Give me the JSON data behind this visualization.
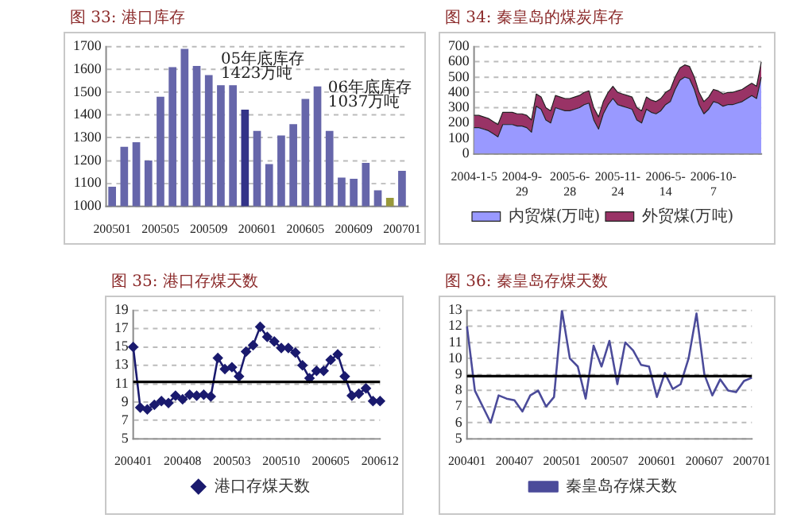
{
  "chart_data": [
    {
      "type": "bar",
      "title": "图 33: 港口库存",
      "categories": [
        "200501",
        null,
        null,
        null,
        "200505",
        null,
        null,
        null,
        "200509",
        null,
        null,
        null,
        "200601",
        null,
        null,
        null,
        "200605",
        null,
        null,
        null,
        "200609",
        null,
        null,
        null,
        "200701"
      ],
      "values": [
        1085,
        1260,
        1280,
        1200,
        1480,
        1610,
        1690,
        1615,
        1575,
        1530,
        1530,
        1423,
        1330,
        1185,
        1310,
        1360,
        1470,
        1525,
        1330,
        1125,
        1120,
        1190,
        1070,
        1037,
        1155
      ],
      "colors": [
        "#6666aa",
        "#6666aa",
        "#6666aa",
        "#6666aa",
        "#6666aa",
        "#6666aa",
        "#6666aa",
        "#6666aa",
        "#6666aa",
        "#6666aa",
        "#6666aa",
        "#333388",
        "#6666aa",
        "#6666aa",
        "#6666aa",
        "#6666aa",
        "#6666aa",
        "#6666aa",
        "#6666aa",
        "#6666aa",
        "#6666aa",
        "#6666aa",
        "#6666aa",
        "#99993a",
        "#6666aa"
      ],
      "ylim": [
        1000,
        1700
      ],
      "yticks": [
        1000,
        1100,
        1200,
        1300,
        1400,
        1500,
        1600,
        1700
      ],
      "grid": "y",
      "annotations": [
        "05年底库存",
        "1423万吨",
        "06年底库存",
        "1037万吨"
      ]
    },
    {
      "type": "area",
      "title": "图 34: 秦皇岛的煤炭库存",
      "stacked": true,
      "categories": [
        "2004-1-5",
        null,
        null,
        null,
        null,
        null,
        null,
        null,
        null,
        null,
        "2004-9-29",
        null,
        null,
        null,
        null,
        null,
        null,
        null,
        null,
        null,
        "2005-6-28",
        null,
        null,
        null,
        null,
        null,
        null,
        null,
        null,
        null,
        "2005-11-24",
        null,
        null,
        null,
        null,
        null,
        null,
        null,
        null,
        null,
        "2006-5-14",
        null,
        null,
        null,
        null,
        null,
        null,
        null,
        null,
        null,
        "2006-10-7",
        null,
        null,
        null,
        null,
        null,
        null,
        null,
        null,
        null,
        null
      ],
      "series": [
        {
          "name": "内贸煤(万吨)",
          "color": "#9999ff",
          "values": [
            170,
            170,
            160,
            150,
            130,
            110,
            190,
            190,
            190,
            180,
            180,
            170,
            140,
            310,
            290,
            220,
            200,
            300,
            290,
            280,
            280,
            290,
            300,
            320,
            330,
            220,
            160,
            260,
            320,
            360,
            320,
            310,
            300,
            290,
            220,
            200,
            290,
            270,
            260,
            280,
            320,
            340,
            420,
            480,
            500,
            490,
            420,
            320,
            260,
            290,
            340,
            330,
            310,
            320,
            320,
            330,
            340,
            360,
            380,
            360,
            500
          ]
        },
        {
          "name": "外贸煤(万吨)",
          "color": "#993366",
          "values": [
            80,
            80,
            80,
            80,
            80,
            80,
            80,
            80,
            80,
            80,
            80,
            80,
            80,
            80,
            80,
            80,
            80,
            80,
            80,
            80,
            80,
            80,
            80,
            80,
            80,
            80,
            80,
            80,
            80,
            80,
            80,
            80,
            80,
            80,
            80,
            80,
            80,
            80,
            80,
            80,
            80,
            80,
            80,
            80,
            80,
            80,
            80,
            80,
            80,
            80,
            80,
            80,
            80,
            80,
            80,
            80,
            80,
            80,
            80,
            80,
            100
          ]
        }
      ],
      "ylim": [
        0,
        700
      ],
      "yticks": [
        0,
        100,
        200,
        300,
        400,
        500,
        600,
        700
      ],
      "grid": "y",
      "legend": "bottom"
    },
    {
      "type": "line",
      "title": "图 35: 港口存煤天数",
      "categories": [
        "200401",
        null,
        null,
        null,
        null,
        null,
        null,
        "200408",
        null,
        null,
        null,
        null,
        null,
        null,
        "200503",
        null,
        null,
        null,
        null,
        null,
        null,
        "200510",
        null,
        null,
        null,
        null,
        null,
        null,
        "200605",
        null,
        null,
        null,
        null,
        null,
        null,
        "200612"
      ],
      "series": [
        {
          "name": "港口存煤天数",
          "color": "#1a1a6e",
          "values": [
            15,
            8.4,
            8.2,
            8.7,
            9.1,
            8.9,
            9.7,
            9.3,
            9.8,
            9.7,
            9.8,
            9.6,
            13.8,
            12.6,
            12.8,
            11.8,
            14.5,
            15.2,
            17.2,
            16.1,
            15.6,
            14.9,
            14.9,
            14.4,
            13,
            11.6,
            12.4,
            12.4,
            13.6,
            14.2,
            11.8,
            9.7,
            9.9,
            10.5,
            9.1,
            9.1
          ]
        }
      ],
      "ylim": [
        5,
        19
      ],
      "yticks": [
        5,
        7,
        9,
        11,
        13,
        15,
        17,
        19
      ],
      "grid": "y",
      "legend": "bottom",
      "marker": "diamond",
      "ref_lines": [
        {
          "axis": "y",
          "value": 11.2,
          "color": "#000000"
        }
      ]
    },
    {
      "type": "line",
      "title": "图 36: 秦皇岛存煤天数",
      "categories": [
        "200401",
        null,
        null,
        null,
        null,
        null,
        "200407",
        null,
        null,
        null,
        null,
        null,
        "200501",
        null,
        null,
        null,
        null,
        null,
        "200507",
        null,
        null,
        null,
        null,
        null,
        "200601",
        null,
        null,
        null,
        null,
        null,
        "200607",
        null,
        null,
        null,
        null,
        null,
        "200701"
      ],
      "series": [
        {
          "name": "秦皇岛存煤天数",
          "color": "#4b4b9a",
          "values": [
            12,
            8,
            7,
            6,
            7.7,
            7.5,
            7.4,
            6.7,
            7.7,
            8,
            7,
            7.6,
            13,
            10,
            9.5,
            7.5,
            10.8,
            9.5,
            11.1,
            8.4,
            11,
            10.5,
            9.6,
            9.5,
            7.6,
            9.1,
            8.1,
            8.4,
            10,
            12.8,
            9,
            7.7,
            8.7,
            8,
            7.9,
            8.6,
            8.8
          ]
        }
      ],
      "ylim": [
        5,
        13
      ],
      "yticks": [
        5,
        6,
        7,
        8,
        9,
        10,
        11,
        12,
        13
      ],
      "grid": "y",
      "legend": "bottom",
      "marker": "none",
      "ref_lines": [
        {
          "axis": "y",
          "value": 8.9,
          "color": "#000000"
        }
      ]
    }
  ]
}
